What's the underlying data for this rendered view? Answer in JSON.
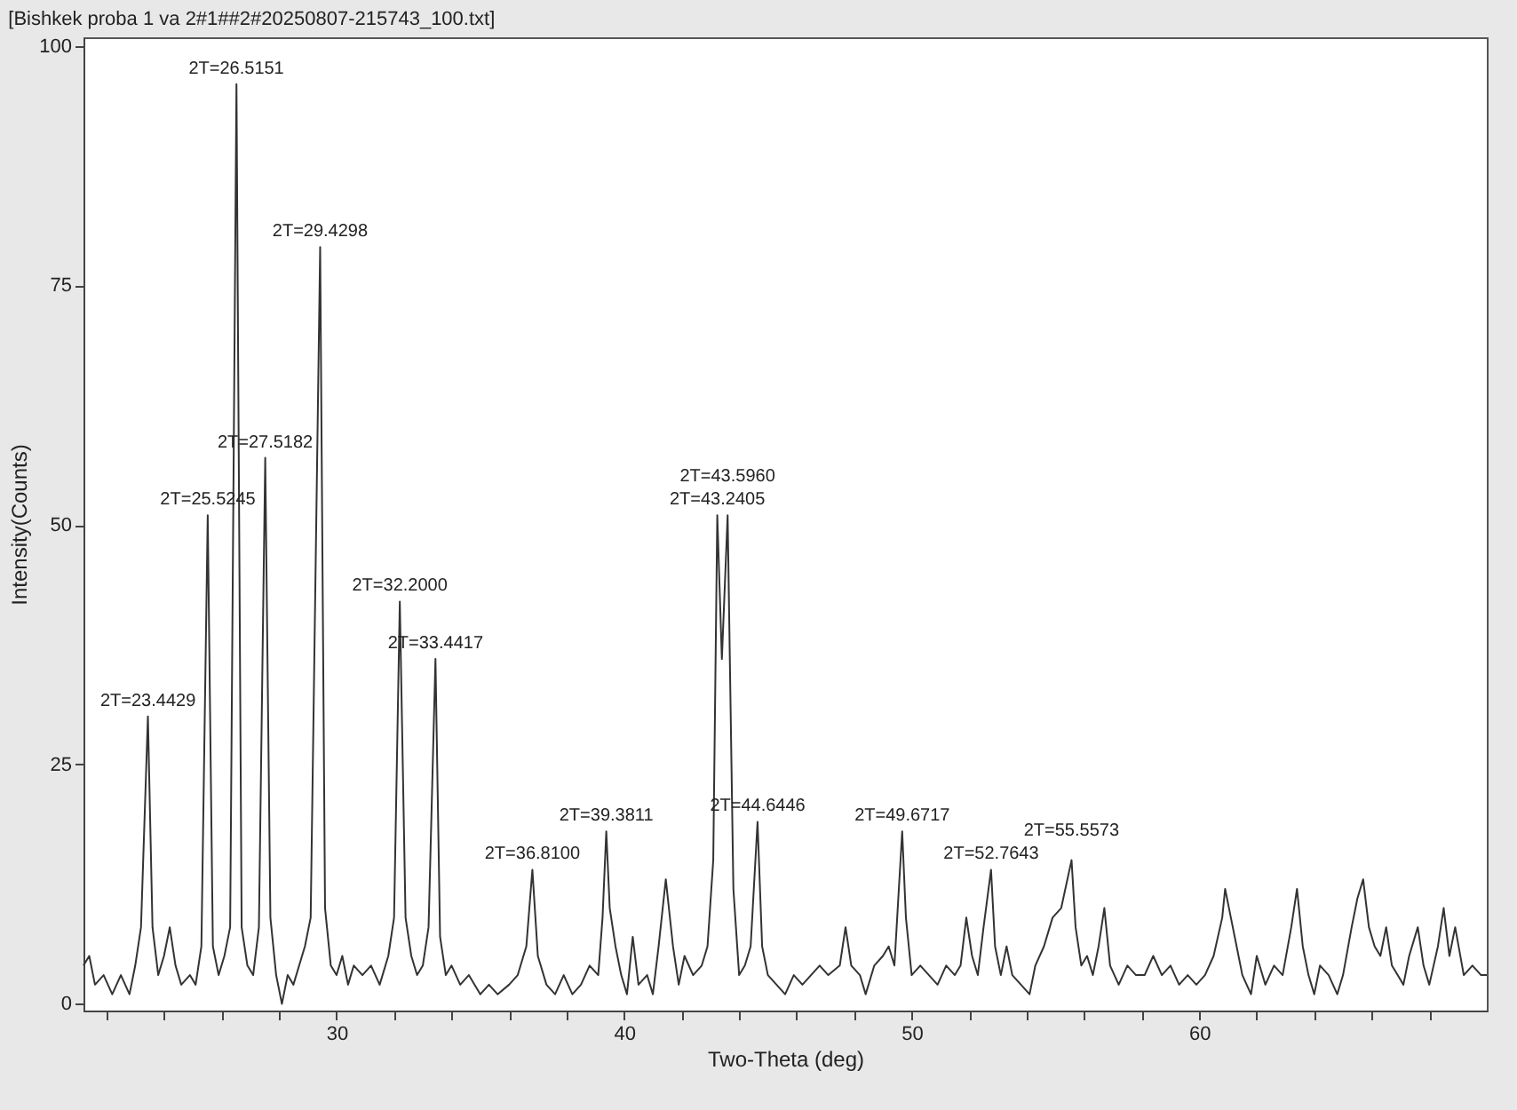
{
  "chart_data": {
    "type": "line",
    "title": "[Bishkek proba 1 va 2#1##2#20250807-215743_100.txt]",
    "xlabel": "Two-Theta (deg)",
    "ylabel": "Intensity(Counts)",
    "xlim": [
      21.2,
      70
    ],
    "ylim": [
      -0.7,
      100.9
    ],
    "xticks": [
      {
        "value": 22,
        "label": null
      },
      {
        "value": 24,
        "label": null
      },
      {
        "value": 26,
        "label": null
      },
      {
        "value": 28,
        "label": null
      },
      30,
      {
        "value": 32,
        "label": null
      },
      {
        "value": 34,
        "label": null
      },
      {
        "value": 36,
        "label": null
      },
      {
        "value": 38,
        "label": null
      },
      40,
      {
        "value": 42,
        "label": null
      },
      {
        "value": 44,
        "label": null
      },
      {
        "value": 46,
        "label": null
      },
      {
        "value": 48,
        "label": null
      },
      50,
      {
        "value": 52,
        "label": null
      },
      {
        "value": 54,
        "label": null
      },
      {
        "value": 56,
        "label": null
      },
      {
        "value": 58,
        "label": null
      },
      60,
      {
        "value": 62,
        "label": null
      },
      {
        "value": 64,
        "label": null
      },
      {
        "value": 66,
        "label": null
      },
      {
        "value": 68,
        "label": null
      }
    ],
    "yticks": [
      0,
      25,
      50,
      75,
      100
    ],
    "grid": false,
    "legend": false,
    "x": [
      21.2,
      21.4,
      21.6,
      21.9,
      22.2,
      22.5,
      22.8,
      23.0,
      23.2,
      23.44,
      23.6,
      23.8,
      24.0,
      24.2,
      24.4,
      24.6,
      24.9,
      25.1,
      25.3,
      25.52,
      25.7,
      25.9,
      26.1,
      26.3,
      26.52,
      26.7,
      26.9,
      27.1,
      27.3,
      27.52,
      27.7,
      27.9,
      28.1,
      28.3,
      28.5,
      28.7,
      28.9,
      29.1,
      29.43,
      29.6,
      29.8,
      30.0,
      30.2,
      30.4,
      30.6,
      30.9,
      31.2,
      31.5,
      31.8,
      32.0,
      32.2,
      32.4,
      32.6,
      32.8,
      33.0,
      33.2,
      33.44,
      33.6,
      33.8,
      34.0,
      34.3,
      34.6,
      35.0,
      35.3,
      35.6,
      36.0,
      36.3,
      36.6,
      36.81,
      37.0,
      37.3,
      37.6,
      37.9,
      38.2,
      38.5,
      38.8,
      39.1,
      39.25,
      39.38,
      39.5,
      39.7,
      39.9,
      40.1,
      40.3,
      40.5,
      40.8,
      41.0,
      41.2,
      41.45,
      41.7,
      41.9,
      42.1,
      42.4,
      42.7,
      42.9,
      43.1,
      43.24,
      43.4,
      43.6,
      43.8,
      44.0,
      44.2,
      44.4,
      44.64,
      44.8,
      45.0,
      45.3,
      45.6,
      45.9,
      46.2,
      46.5,
      46.8,
      47.1,
      47.5,
      47.7,
      47.9,
      48.2,
      48.4,
      48.7,
      49.0,
      49.2,
      49.4,
      49.67,
      49.8,
      50.0,
      50.3,
      50.6,
      50.9,
      51.2,
      51.5,
      51.7,
      51.9,
      52.1,
      52.3,
      52.5,
      52.76,
      52.9,
      53.1,
      53.3,
      53.5,
      53.8,
      54.1,
      54.3,
      54.6,
      54.9,
      55.2,
      55.56,
      55.7,
      55.9,
      56.1,
      56.3,
      56.5,
      56.7,
      56.9,
      57.2,
      57.5,
      57.8,
      58.1,
      58.4,
      58.7,
      59.0,
      59.3,
      59.6,
      59.9,
      60.2,
      60.5,
      60.8,
      60.9,
      61.1,
      61.3,
      61.5,
      61.8,
      62.0,
      62.3,
      62.6,
      62.9,
      63.2,
      63.4,
      63.6,
      63.8,
      64.0,
      64.2,
      64.5,
      64.8,
      65.0,
      65.3,
      65.5,
      65.7,
      65.9,
      66.1,
      66.3,
      66.5,
      66.7,
      66.9,
      67.1,
      67.3,
      67.6,
      67.8,
      68.0,
      68.3,
      68.5,
      68.7,
      68.9,
      69.2,
      69.5,
      69.8,
      70.0
    ],
    "series": [
      {
        "color": "#333333",
        "values": [
          4,
          5,
          2,
          3,
          1,
          3,
          1,
          4,
          8,
          30,
          8,
          3,
          5,
          8,
          4,
          2,
          3,
          2,
          6,
          51,
          6,
          3,
          5,
          8,
          96,
          8,
          4,
          3,
          8,
          57,
          9,
          3,
          0,
          3,
          2,
          4,
          6,
          9,
          79,
          10,
          4,
          3,
          5,
          2,
          4,
          3,
          4,
          2,
          5,
          9,
          42,
          9,
          5,
          3,
          4,
          8,
          36,
          7,
          3,
          4,
          2,
          3,
          1,
          2,
          1,
          2,
          3,
          6,
          14,
          5,
          2,
          1,
          3,
          1,
          2,
          4,
          3,
          9,
          18,
          10,
          6,
          3,
          1,
          7,
          2,
          3,
          1,
          6,
          13,
          6,
          2,
          5,
          3,
          4,
          6,
          15,
          51,
          36,
          51,
          12,
          3,
          4,
          6,
          19,
          6,
          3,
          2,
          1,
          3,
          2,
          3,
          4,
          3,
          4,
          8,
          4,
          3,
          1,
          4,
          5,
          6,
          4,
          18,
          9,
          3,
          4,
          3,
          2,
          4,
          3,
          4,
          9,
          5,
          3,
          8,
          14,
          6,
          3,
          6,
          3,
          2,
          1,
          4,
          6,
          9,
          10,
          15,
          8,
          4,
          5,
          3,
          6,
          10,
          4,
          2,
          4,
          3,
          3,
          5,
          3,
          4,
          2,
          3,
          2,
          3,
          5,
          9,
          12,
          9,
          6,
          3,
          1,
          5,
          2,
          4,
          3,
          8,
          12,
          6,
          3,
          1,
          4,
          3,
          1,
          3,
          8,
          11,
          13,
          8,
          6,
          5,
          8,
          4,
          3,
          2,
          5,
          8,
          4,
          2,
          6,
          10,
          5,
          8,
          3,
          4,
          3,
          3
        ]
      }
    ],
    "annotations": [
      {
        "text": "2T=23.4429",
        "x": 23.4429,
        "y": 30
      },
      {
        "text": "2T=25.5245",
        "x": 25.5245,
        "y": 51
      },
      {
        "text": "2T=26.5151",
        "x": 26.5151,
        "y": 96
      },
      {
        "text": "2T=27.5182",
        "x": 27.5182,
        "y": 57
      },
      {
        "text": "2T=29.4298",
        "x": 29.4298,
        "y": 79
      },
      {
        "text": "2T=32.2000",
        "x": 32.2,
        "y": 42
      },
      {
        "text": "2T=33.4417",
        "x": 33.4417,
        "y": 36
      },
      {
        "text": "2T=36.8100",
        "x": 36.81,
        "y": 14
      },
      {
        "text": "2T=39.3811",
        "x": 39.3811,
        "y": 18
      },
      {
        "text": "2T=43.2405",
        "x": 43.2405,
        "y": 51
      },
      {
        "text": "2T=43.5960",
        "x": 43.596,
        "y": 51
      },
      {
        "text": "2T=44.6446",
        "x": 44.6446,
        "y": 19
      },
      {
        "text": "2T=49.6717",
        "x": 49.6717,
        "y": 18
      },
      {
        "text": "2T=52.7643",
        "x": 52.7643,
        "y": 14
      },
      {
        "text": "2T=55.5573",
        "x": 55.5573,
        "y": 15
      }
    ]
  }
}
